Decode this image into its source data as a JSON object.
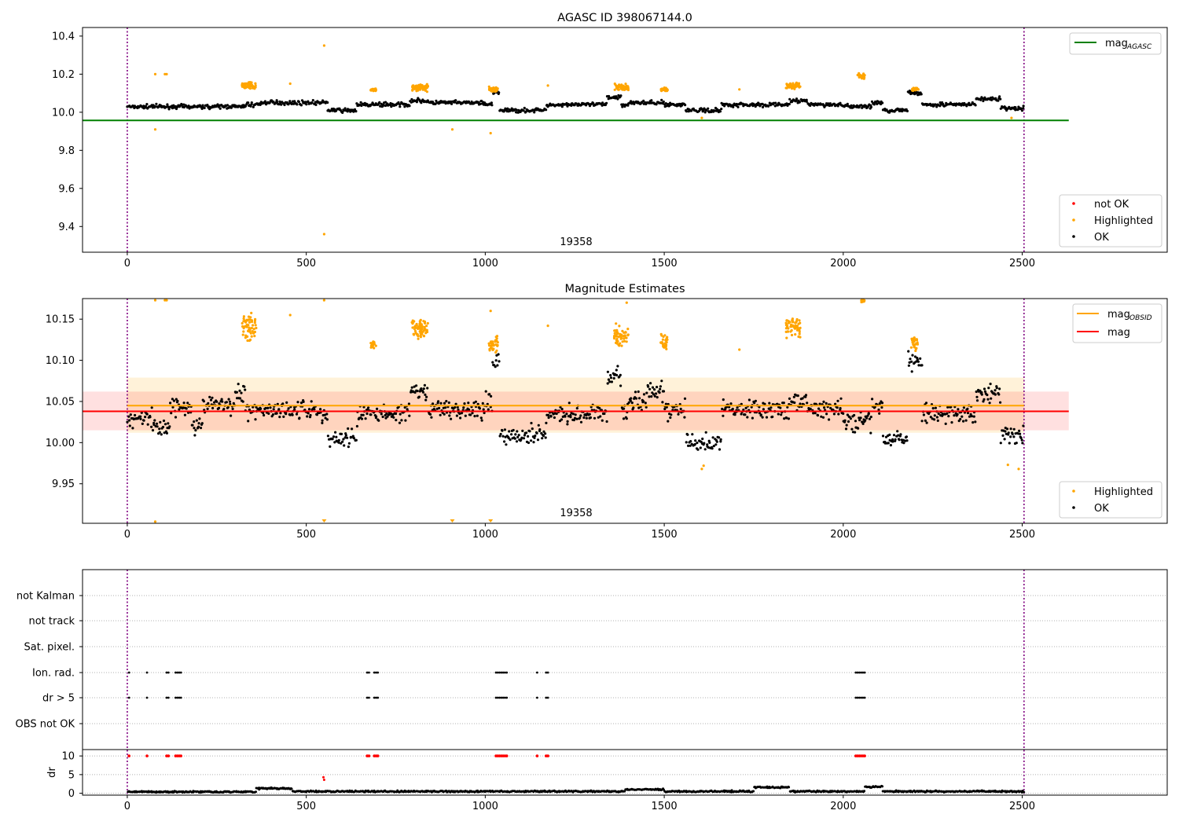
{
  "chart_data": [
    {
      "type": "scatter",
      "title": "AGASC ID 398067144.0",
      "obsid_label": "19358",
      "xlim": [
        -125,
        2905
      ],
      "ylim": [
        9.265,
        10.445
      ],
      "xticks": [
        0,
        500,
        1000,
        1500,
        2000,
        2500
      ],
      "yticks": [
        9.4,
        9.6,
        9.8,
        10.0,
        10.2,
        10.4
      ],
      "xtick_labels": [
        "0",
        "500",
        "1000",
        "1500",
        "2000",
        "2500"
      ],
      "ytick_labels": [
        "9.4",
        "9.6",
        "9.8",
        "10.0",
        "10.2",
        "10.4"
      ],
      "obs_bounds": [
        0,
        2505
      ],
      "mag_agasc": 9.957,
      "mag_agasc_range": [
        -125,
        2630
      ],
      "legend_lines": [
        {
          "label": "mag",
          "sub": "AGASC",
          "color": "#008000"
        }
      ],
      "legend_points": [
        {
          "label": "not OK",
          "color": "#ff0000"
        },
        {
          "label": "Highlighted",
          "color": "#ffa500"
        },
        {
          "label": "OK",
          "color": "#000000"
        }
      ],
      "segments": [
        [
          0,
          330,
          10.03
        ],
        [
          330,
          370,
          10.04
        ],
        [
          370,
          560,
          10.05
        ],
        [
          560,
          640,
          10.01
        ],
        [
          640,
          790,
          10.04
        ],
        [
          790,
          840,
          10.06
        ],
        [
          840,
          1000,
          10.05
        ],
        [
          1000,
          1020,
          10.04
        ],
        [
          1020,
          1040,
          10.1
        ],
        [
          1040,
          1170,
          10.01
        ],
        [
          1170,
          1340,
          10.04
        ],
        [
          1340,
          1380,
          10.08
        ],
        [
          1380,
          1400,
          10.04
        ],
        [
          1400,
          1500,
          10.05
        ],
        [
          1500,
          1560,
          10.04
        ],
        [
          1560,
          1660,
          10.01
        ],
        [
          1660,
          1850,
          10.04
        ],
        [
          1850,
          1900,
          10.06
        ],
        [
          1900,
          2000,
          10.04
        ],
        [
          2000,
          2080,
          10.03
        ],
        [
          2080,
          2110,
          10.05
        ],
        [
          2110,
          2180,
          10.01
        ],
        [
          2180,
          2220,
          10.1
        ],
        [
          2220,
          2370,
          10.04
        ],
        [
          2370,
          2440,
          10.07
        ],
        [
          2440,
          2505,
          10.02
        ]
      ],
      "highlight_clusters": [
        [
          320,
          360,
          10.14,
          0.02
        ],
        [
          680,
          695,
          10.12,
          0.01
        ],
        [
          795,
          840,
          10.13,
          0.02
        ],
        [
          1010,
          1035,
          10.12,
          0.015
        ],
        [
          1360,
          1400,
          10.13,
          0.02
        ],
        [
          1490,
          1510,
          10.12,
          0.01
        ],
        [
          1840,
          1880,
          10.14,
          0.02
        ],
        [
          2040,
          2060,
          10.19,
          0.02
        ],
        [
          2190,
          2210,
          10.12,
          0.01
        ]
      ],
      "highlight_points": [
        [
          78,
          10.2
        ],
        [
          105,
          10.2
        ],
        [
          110,
          10.2
        ],
        [
          455,
          10.15
        ],
        [
          550,
          10.35
        ],
        [
          550,
          9.36
        ],
        [
          78,
          9.91
        ],
        [
          908,
          9.91
        ],
        [
          1015,
          9.89
        ],
        [
          1175,
          10.14
        ],
        [
          1710,
          10.12
        ],
        [
          1605,
          9.97
        ],
        [
          2470,
          9.97
        ]
      ]
    },
    {
      "type": "scatter",
      "title": "Magnitude Estimates",
      "obsid_label": "19358",
      "xlim": [
        -125,
        2905
      ],
      "ylim": [
        9.902,
        10.175
      ],
      "xticks": [
        0,
        500,
        1000,
        1500,
        2000,
        2500
      ],
      "yticks": [
        9.95,
        10.0,
        10.05,
        10.1,
        10.15
      ],
      "xtick_labels": [
        "0",
        "500",
        "1000",
        "1500",
        "2000",
        "2500"
      ],
      "ytick_labels": [
        "9.95",
        "10.00",
        "10.05",
        "10.10",
        "10.15"
      ],
      "obs_bounds": [
        0,
        2505
      ],
      "mag_obsid": 10.045,
      "mag_obsid_band": [
        10.012,
        10.079
      ],
      "mag": 10.038,
      "mag_band": [
        10.015,
        10.062
      ],
      "mag_range": [
        -125,
        2630
      ],
      "legend_lines": [
        {
          "label": "mag",
          "sub": "OBSID",
          "color": "#ffa500"
        },
        {
          "label": "mag",
          "sub": "",
          "color": "#ff0000"
        }
      ],
      "legend_points": [
        {
          "label": "Highlighted",
          "color": "#ffa500"
        },
        {
          "label": "OK",
          "color": "#000000"
        }
      ],
      "segments": [
        [
          0,
          70,
          10.03
        ],
        [
          70,
          120,
          10.02
        ],
        [
          120,
          180,
          10.045
        ],
        [
          180,
          210,
          10.02
        ],
        [
          210,
          300,
          10.045
        ],
        [
          300,
          330,
          10.06
        ],
        [
          330,
          370,
          10.04
        ],
        [
          370,
          540,
          10.04
        ],
        [
          540,
          560,
          10.03
        ],
        [
          560,
          640,
          10.005
        ],
        [
          640,
          790,
          10.035
        ],
        [
          790,
          840,
          10.06
        ],
        [
          840,
          1000,
          10.04
        ],
        [
          1000,
          1020,
          10.05
        ],
        [
          1020,
          1040,
          10.1
        ],
        [
          1040,
          1170,
          10.01
        ],
        [
          1170,
          1340,
          10.035
        ],
        [
          1340,
          1380,
          10.08
        ],
        [
          1380,
          1400,
          10.04
        ],
        [
          1400,
          1450,
          10.05
        ],
        [
          1450,
          1500,
          10.06
        ],
        [
          1500,
          1560,
          10.04
        ],
        [
          1560,
          1660,
          10.0
        ],
        [
          1660,
          1850,
          10.04
        ],
        [
          1850,
          1900,
          10.05
        ],
        [
          1900,
          2000,
          10.04
        ],
        [
          2000,
          2080,
          10.025
        ],
        [
          2080,
          2110,
          10.045
        ],
        [
          2110,
          2180,
          10.005
        ],
        [
          2180,
          2220,
          10.1
        ],
        [
          2220,
          2370,
          10.035
        ],
        [
          2370,
          2440,
          10.06
        ],
        [
          2440,
          2505,
          10.01
        ]
      ],
      "highlight_clusters": [
        [
          320,
          360,
          10.14,
          0.018
        ],
        [
          680,
          695,
          10.12,
          0.006
        ],
        [
          795,
          840,
          10.14,
          0.015
        ],
        [
          1010,
          1035,
          10.12,
          0.012
        ],
        [
          1360,
          1400,
          10.13,
          0.015
        ],
        [
          1490,
          1510,
          10.12,
          0.012
        ],
        [
          1840,
          1880,
          10.14,
          0.015
        ],
        [
          2050,
          2060,
          10.172,
          0.002
        ],
        [
          2190,
          2210,
          10.12,
          0.012
        ]
      ],
      "highlight_points": [
        [
          78,
          10.173
        ],
        [
          105,
          10.173
        ],
        [
          110,
          10.173
        ],
        [
          455,
          10.155
        ],
        [
          550,
          10.173
        ],
        [
          1015,
          10.16
        ],
        [
          1175,
          10.142
        ],
        [
          1395,
          10.17
        ],
        [
          1710,
          10.113
        ],
        [
          1605,
          9.968
        ],
        [
          1610,
          9.972
        ],
        [
          2460,
          9.973
        ],
        [
          2490,
          9.968
        ],
        [
          78,
          9.904
        ]
      ],
      "clipped_low": [
        550,
        908,
        1015
      ]
    },
    {
      "type": "scatter",
      "title": "",
      "xlim": [
        -125,
        2905
      ],
      "xticks": [
        0,
        500,
        1000,
        1500,
        2000,
        2500
      ],
      "xtick_labels": [
        "0",
        "500",
        "1000",
        "1500",
        "2000",
        "2500"
      ],
      "obs_bounds": [
        0,
        2505
      ],
      "flag_rows": [
        "not Kalman",
        "not track",
        "Sat. pixel.",
        "Ion. rad.",
        "dr > 5",
        "OBS not OK"
      ],
      "flag_times": [
        5,
        55,
        110,
        115,
        135,
        140,
        145,
        150,
        670,
        675,
        690,
        695,
        700,
        1030,
        1035,
        1040,
        1045,
        1050,
        1055,
        1060,
        1145,
        1170,
        1175,
        2035,
        2040,
        2045,
        2050,
        2055,
        2060
      ],
      "dr_label": "dr",
      "dr_ylim": [
        -0.5,
        11.5
      ],
      "dr_yticks": [
        0,
        5,
        10
      ],
      "dr_ytick_labels": [
        "0",
        "5",
        "10"
      ],
      "dr_segments": [
        [
          0,
          360,
          0.4
        ],
        [
          360,
          460,
          1.3
        ],
        [
          460,
          1390,
          0.5
        ],
        [
          1390,
          1500,
          1.0
        ],
        [
          1500,
          1750,
          0.5
        ],
        [
          1750,
          1850,
          1.6
        ],
        [
          1850,
          2060,
          0.5
        ],
        [
          2060,
          2110,
          1.7
        ],
        [
          2110,
          2505,
          0.5
        ]
      ],
      "dr_outliers": [
        [
          548,
          4.3
        ],
        [
          550,
          3.6
        ]
      ]
    }
  ]
}
